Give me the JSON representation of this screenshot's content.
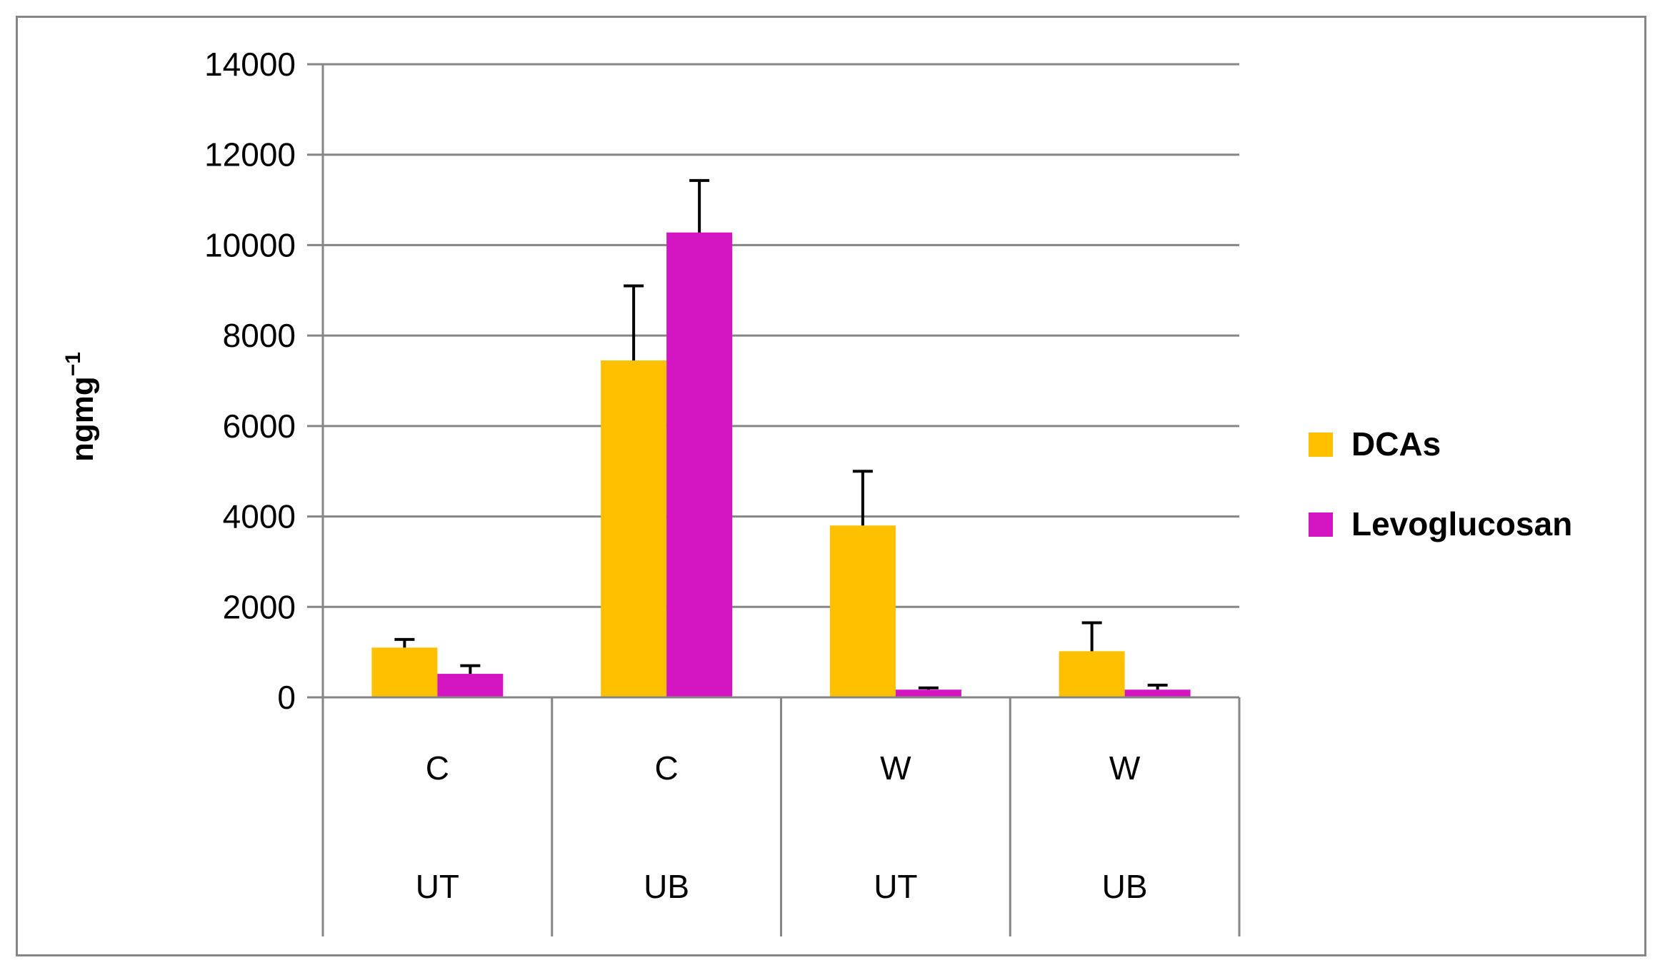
{
  "chart_data": {
    "type": "bar",
    "title": "",
    "xlabel": "",
    "ylabel": "ngmg",
    "ylabel_superscript": "−1",
    "ylim": [
      0,
      14000
    ],
    "yticks": [
      0,
      2000,
      4000,
      6000,
      8000,
      10000,
      12000,
      14000
    ],
    "grid": true,
    "legend_position": "right",
    "categories": [
      {
        "level1": "C",
        "level2": "UT"
      },
      {
        "level1": "C",
        "level2": "UB"
      },
      {
        "level1": "W",
        "level2": "UT"
      },
      {
        "level1": "W",
        "level2": "UB"
      }
    ],
    "series": [
      {
        "name": "DCAs",
        "color": "#FFC000",
        "values": [
          1100,
          7450,
          3800,
          1020
        ],
        "errors": [
          180,
          1650,
          1200,
          630
        ]
      },
      {
        "name": "Levoglucosan",
        "color": "#D416C2",
        "values": [
          520,
          10280,
          170,
          170
        ],
        "errors": [
          180,
          1150,
          40,
          100
        ]
      }
    ]
  }
}
